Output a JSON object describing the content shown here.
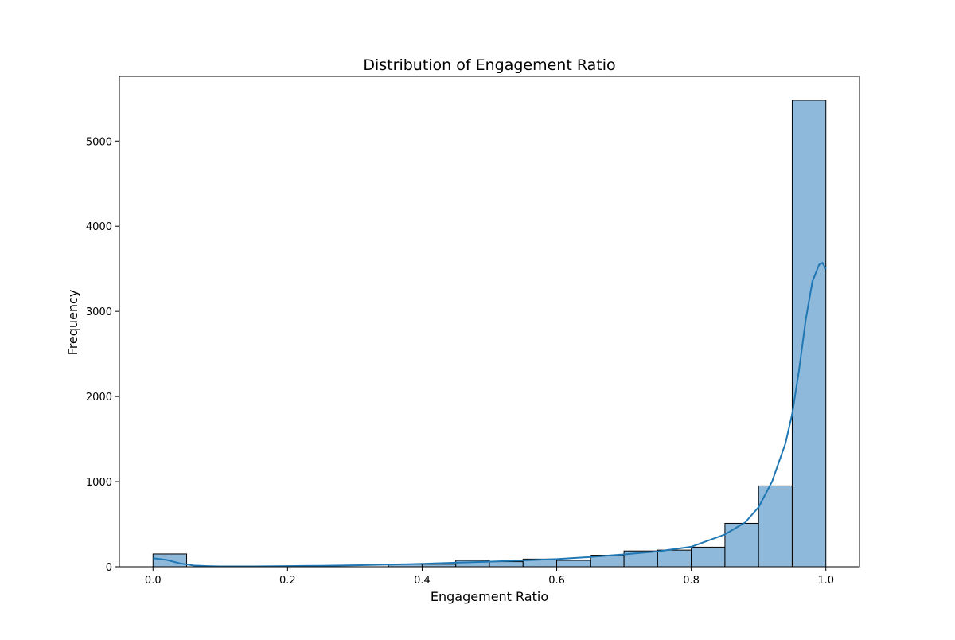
{
  "chart_data": {
    "type": "bar",
    "title": "Distribution of Engagement Ratio",
    "xlabel": "Engagement Ratio",
    "ylabel": "Frequency",
    "xlim": [
      -0.05,
      1.05
    ],
    "ylim": [
      0,
      5760
    ],
    "x_ticks": [
      0.0,
      0.2,
      0.4,
      0.6,
      0.8,
      1.0
    ],
    "x_tick_labels": [
      "0.0",
      "0.2",
      "0.4",
      "0.6",
      "0.8",
      "1.0"
    ],
    "y_ticks": [
      0,
      1000,
      2000,
      3000,
      4000,
      5000
    ],
    "y_tick_labels": [
      "0",
      "1000",
      "2000",
      "3000",
      "4000",
      "5000"
    ],
    "grid": false,
    "legend": "none",
    "bar_color": "#8fb9da",
    "edge_color": "#000000",
    "kde_color": "#1f77b4",
    "bins": [
      {
        "start": 0.0,
        "end": 0.05,
        "count": 150
      },
      {
        "start": 0.35,
        "end": 0.4,
        "count": 30
      },
      {
        "start": 0.4,
        "end": 0.45,
        "count": 30
      },
      {
        "start": 0.45,
        "end": 0.5,
        "count": 75
      },
      {
        "start": 0.5,
        "end": 0.55,
        "count": 60
      },
      {
        "start": 0.55,
        "end": 0.6,
        "count": 90
      },
      {
        "start": 0.6,
        "end": 0.65,
        "count": 75
      },
      {
        "start": 0.65,
        "end": 0.7,
        "count": 135
      },
      {
        "start": 0.7,
        "end": 0.75,
        "count": 185
      },
      {
        "start": 0.75,
        "end": 0.8,
        "count": 195
      },
      {
        "start": 0.8,
        "end": 0.85,
        "count": 230
      },
      {
        "start": 0.85,
        "end": 0.9,
        "count": 510
      },
      {
        "start": 0.9,
        "end": 0.95,
        "count": 950
      },
      {
        "start": 0.95,
        "end": 1.0,
        "count": 5480
      }
    ],
    "kde_curve": {
      "x": [
        0.0,
        0.02,
        0.04,
        0.06,
        0.08,
        0.1,
        0.15,
        0.2,
        0.25,
        0.3,
        0.35,
        0.4,
        0.45,
        0.5,
        0.55,
        0.6,
        0.65,
        0.7,
        0.75,
        0.8,
        0.85,
        0.88,
        0.9,
        0.92,
        0.94,
        0.95,
        0.96,
        0.97,
        0.98,
        0.99,
        0.995,
        1.0
      ],
      "y": [
        100,
        80,
        40,
        15,
        8,
        5,
        5,
        8,
        12,
        18,
        25,
        35,
        48,
        60,
        75,
        90,
        115,
        145,
        180,
        235,
        380,
        520,
        700,
        1000,
        1450,
        1800,
        2300,
        2900,
        3350,
        3550,
        3570,
        3500
      ]
    }
  }
}
